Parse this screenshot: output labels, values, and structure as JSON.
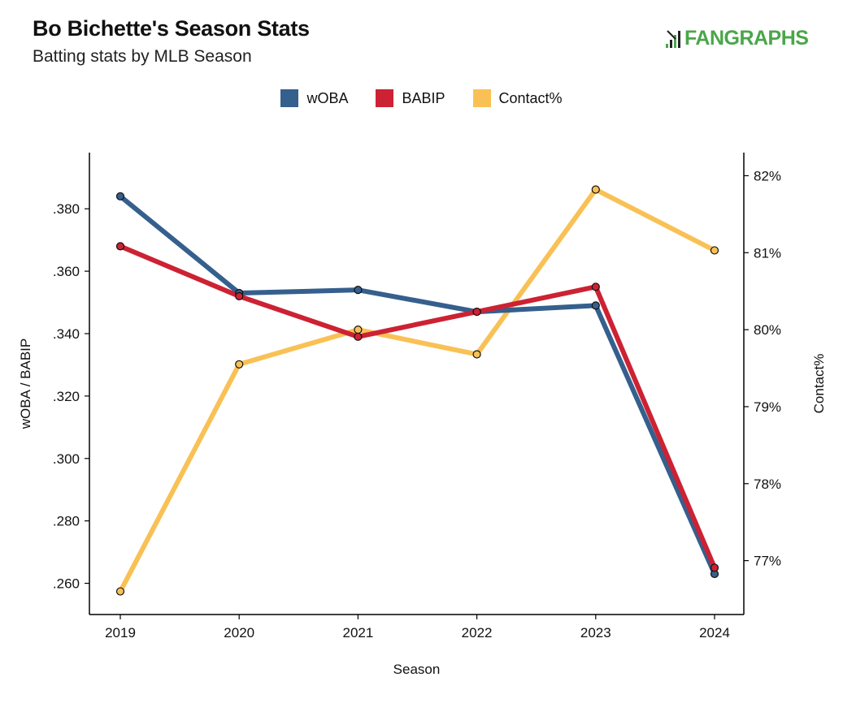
{
  "header": {
    "title": "Bo Bichette's Season Stats",
    "subtitle": "Batting stats by MLB Season",
    "logo_text": "FANGRAPHS"
  },
  "chart_data": {
    "type": "line",
    "x": [
      2019,
      2020,
      2021,
      2022,
      2023,
      2024
    ],
    "xlabel": "Season",
    "ylabel_left": "wOBA / BABIP",
    "ylabel_right": "Contact%",
    "ylim_left": [
      0.25,
      0.398
    ],
    "ylim_right": [
      76.3,
      82.3
    ],
    "yticks_left": [
      ".260",
      ".280",
      ".300",
      ".320",
      ".340",
      ".360",
      ".380"
    ],
    "yticks_left_values": [
      0.26,
      0.28,
      0.3,
      0.32,
      0.34,
      0.36,
      0.38
    ],
    "yticks_right": [
      "77%",
      "78%",
      "79%",
      "80%",
      "81%",
      "82%"
    ],
    "yticks_right_values": [
      77,
      78,
      79,
      80,
      81,
      82
    ],
    "legend_position": "top-center",
    "grid": false,
    "series": [
      {
        "name": "wOBA",
        "axis": "left",
        "color": "#355f8d",
        "values": [
          0.384,
          0.353,
          0.354,
          0.347,
          0.349,
          0.263
        ]
      },
      {
        "name": "BABIP",
        "axis": "left",
        "color": "#cc2233",
        "values": [
          0.368,
          0.352,
          0.339,
          0.347,
          0.355,
          0.265
        ]
      },
      {
        "name": "Contact%",
        "axis": "right",
        "color": "#f9c155",
        "values": [
          76.6,
          79.55,
          80.0,
          79.68,
          81.82,
          81.03
        ]
      }
    ]
  }
}
